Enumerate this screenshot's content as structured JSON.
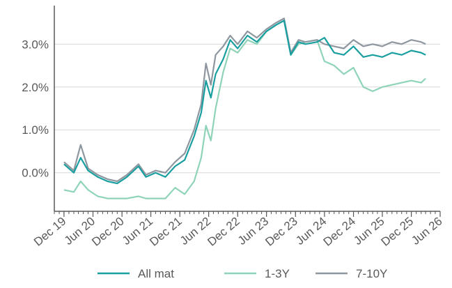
{
  "chart_data": {
    "type": "line",
    "title": "",
    "xlabel": "",
    "ylabel": "",
    "ylim": [
      -0.9,
      3.9
    ],
    "xlim": [
      "2019-10-01",
      "2026-06-01"
    ],
    "yticks": [
      0.0,
      1.0,
      2.0,
      3.0
    ],
    "ytick_labels": [
      "0.0%",
      "1.0%",
      "2.0%",
      "3.0%"
    ],
    "xtick_labels": [
      "Dec 19",
      "Jun 20",
      "Dec 20",
      "Jun 21",
      "Dec 21",
      "Jun 22",
      "Dec 22",
      "Jun 23",
      "Dec 23",
      "Jun 24",
      "Dec 24",
      "Jun 25",
      "Dec 25",
      "Jun 26"
    ],
    "xtick_dates": [
      "2019-12-01",
      "2020-06-01",
      "2020-12-01",
      "2021-06-01",
      "2021-12-01",
      "2022-06-01",
      "2022-12-01",
      "2023-06-01",
      "2023-12-01",
      "2024-06-01",
      "2024-12-01",
      "2025-06-01",
      "2025-12-01",
      "2026-06-01"
    ],
    "grid": "horizontal",
    "legend": "bottom",
    "series": [
      {
        "name": "All mat",
        "color": "#1a9fa0",
        "x": [
          "2019-12-01",
          "2020-02-01",
          "2020-03-15",
          "2020-05-01",
          "2020-07-01",
          "2020-09-01",
          "2020-11-01",
          "2021-01-01",
          "2021-03-15",
          "2021-05-01",
          "2021-07-01",
          "2021-09-01",
          "2021-11-01",
          "2022-01-01",
          "2022-03-01",
          "2022-04-15",
          "2022-05-15",
          "2022-06-15",
          "2022-07-15",
          "2022-09-01",
          "2022-10-15",
          "2022-12-01",
          "2023-02-01",
          "2023-04-01",
          "2023-06-01",
          "2023-08-01",
          "2023-09-20",
          "2023-11-01",
          "2023-12-20",
          "2024-02-01",
          "2024-04-15",
          "2024-06-01",
          "2024-08-01",
          "2024-10-01",
          "2024-12-01",
          "2025-02-01",
          "2025-04-01",
          "2025-06-01",
          "2025-08-01",
          "2025-10-01",
          "2025-12-01",
          "2026-02-01",
          "2026-03-01"
        ],
        "y": [
          0.2,
          0.0,
          0.35,
          0.05,
          -0.1,
          -0.2,
          -0.25,
          -0.1,
          0.15,
          -0.1,
          0.0,
          -0.1,
          0.15,
          0.3,
          0.85,
          1.4,
          2.15,
          1.75,
          2.3,
          2.65,
          3.1,
          2.9,
          3.2,
          3.05,
          3.3,
          3.45,
          3.55,
          2.75,
          3.05,
          3.0,
          3.05,
          3.15,
          2.8,
          2.75,
          2.95,
          2.7,
          2.75,
          2.7,
          2.8,
          2.75,
          2.85,
          2.8,
          2.75
        ]
      },
      {
        "name": "1-3Y",
        "color": "#8fd3b8",
        "x": [
          "2019-12-01",
          "2020-02-01",
          "2020-03-15",
          "2020-05-01",
          "2020-07-01",
          "2020-09-01",
          "2020-11-01",
          "2021-01-01",
          "2021-03-15",
          "2021-05-01",
          "2021-07-01",
          "2021-09-01",
          "2021-11-01",
          "2022-01-01",
          "2022-03-01",
          "2022-04-15",
          "2022-05-15",
          "2022-06-15",
          "2022-07-15",
          "2022-09-01",
          "2022-10-15",
          "2022-12-01",
          "2023-02-01",
          "2023-04-01",
          "2023-06-01",
          "2023-08-01",
          "2023-09-20",
          "2023-11-01",
          "2023-12-20",
          "2024-02-01",
          "2024-04-15",
          "2024-06-01",
          "2024-08-01",
          "2024-10-01",
          "2024-12-01",
          "2025-02-01",
          "2025-04-01",
          "2025-06-01",
          "2025-08-01",
          "2025-10-01",
          "2025-12-01",
          "2026-02-01",
          "2026-03-01"
        ],
        "y": [
          -0.4,
          -0.45,
          -0.2,
          -0.4,
          -0.55,
          -0.6,
          -0.6,
          -0.6,
          -0.55,
          -0.6,
          -0.6,
          -0.6,
          -0.35,
          -0.5,
          -0.2,
          0.35,
          1.1,
          0.75,
          1.5,
          2.35,
          2.9,
          2.8,
          3.1,
          3.0,
          3.3,
          3.45,
          3.55,
          2.75,
          3.0,
          3.05,
          3.1,
          2.6,
          2.5,
          2.3,
          2.45,
          2.0,
          1.9,
          2.0,
          2.05,
          2.1,
          2.15,
          2.1,
          2.2
        ]
      },
      {
        "name": "7-10Y",
        "color": "#8e979f",
        "x": [
          "2019-12-01",
          "2020-02-01",
          "2020-03-15",
          "2020-05-01",
          "2020-07-01",
          "2020-09-01",
          "2020-11-01",
          "2021-01-01",
          "2021-03-15",
          "2021-05-01",
          "2021-07-01",
          "2021-09-01",
          "2021-11-01",
          "2022-01-01",
          "2022-03-01",
          "2022-04-15",
          "2022-05-15",
          "2022-06-15",
          "2022-07-15",
          "2022-09-01",
          "2022-10-15",
          "2022-12-01",
          "2023-02-01",
          "2023-04-01",
          "2023-06-01",
          "2023-08-01",
          "2023-09-20",
          "2023-11-01",
          "2023-12-20",
          "2024-02-01",
          "2024-04-15",
          "2024-06-01",
          "2024-08-01",
          "2024-10-01",
          "2024-12-01",
          "2025-02-01",
          "2025-04-01",
          "2025-06-01",
          "2025-08-01",
          "2025-10-01",
          "2025-12-01",
          "2026-02-01",
          "2026-03-01"
        ],
        "y": [
          0.25,
          0.05,
          0.65,
          0.1,
          -0.05,
          -0.15,
          -0.2,
          -0.05,
          0.2,
          -0.05,
          0.05,
          0.0,
          0.25,
          0.45,
          1.0,
          1.6,
          2.55,
          2.05,
          2.75,
          2.95,
          3.2,
          3.0,
          3.3,
          3.15,
          3.35,
          3.5,
          3.6,
          2.8,
          3.1,
          3.05,
          3.1,
          3.0,
          2.95,
          2.9,
          3.1,
          2.95,
          3.0,
          2.95,
          3.05,
          3.0,
          3.1,
          3.05,
          3.0
        ]
      }
    ]
  }
}
